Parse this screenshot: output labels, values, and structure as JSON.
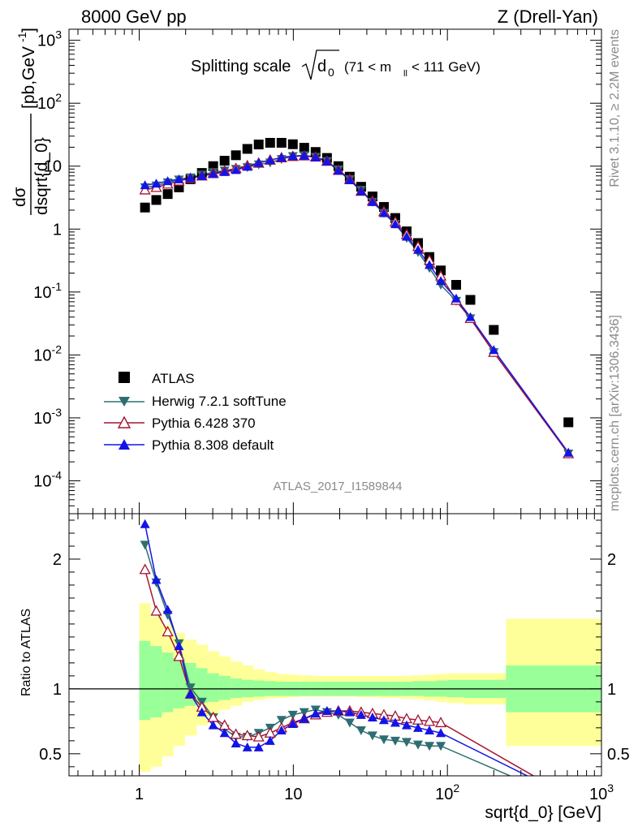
{
  "header": {
    "left": "8000 GeV pp",
    "right": "Z (Drell-Yan)"
  },
  "side_labels": {
    "rivet": "Rivet 3.1.10, ≥ 2.2M events",
    "mcplots": "mcplots.cern.ch [arXiv:1306.3436]"
  },
  "analysis_id": "ATLAS_2017_I1589844",
  "title": {
    "prefix": "Splitting scale",
    "sqrt_arg": "d",
    "sqrt_sub": "0",
    "range_pre": "(71 < m",
    "range_sub": "ll",
    "range_post": " < 111 GeV)"
  },
  "y_label_main": {
    "num": "dσ",
    "den": "dsqrt{d_0}",
    "units": "[pb,GeV",
    "units_sup": "-1",
    "units_end": "]"
  },
  "y_label_ratio": "Ratio to ATLAS",
  "x_label": "sqrt{d_0} [GeV]",
  "colors": {
    "atlas": "#000000",
    "herwig": "#2e6e72",
    "pythia6": "#a41530",
    "pythia8": "#1414e6",
    "band_inner": "#99ff99",
    "band_outer": "#ffff99"
  },
  "chart_data": [
    {
      "type": "scatter",
      "panel": "main",
      "xscale": "log",
      "yscale": "log",
      "xlim": [
        0.35,
        1000
      ],
      "ylim": [
        3e-05,
        1500
      ],
      "x_ticks": [
        1,
        10,
        100,
        1000
      ],
      "x_tick_labels": [
        "1",
        "10",
        "10²",
        "10³"
      ],
      "y_ticks": [
        {
          "v": 0.0001,
          "b": "10",
          "e": "-4"
        },
        {
          "v": 0.001,
          "b": "10",
          "e": "-3"
        },
        {
          "v": 0.01,
          "b": "10",
          "e": "-2"
        },
        {
          "v": 0.1,
          "b": "10",
          "e": "-1"
        },
        {
          "v": 1,
          "b": "1",
          "e": ""
        },
        {
          "v": 10,
          "b": "10",
          "e": ""
        },
        {
          "v": 100,
          "b": "10",
          "e": "2"
        },
        {
          "v": 1000,
          "b": "10",
          "e": "3"
        }
      ],
      "legend_position": "bottom-left",
      "x": [
        1.09,
        1.29,
        1.53,
        1.81,
        2.15,
        2.55,
        3.02,
        3.58,
        4.24,
        5.03,
        5.96,
        7.07,
        8.38,
        9.93,
        11.77,
        13.95,
        16.54,
        19.61,
        23.24,
        27.55,
        32.66,
        38.72,
        45.89,
        54.4,
        64.49,
        76.44,
        90.62,
        114.0,
        141.0,
        200.0,
        610.0
      ],
      "series": [
        {
          "name": "ATLAS",
          "marker": "square",
          "values": [
            2.2,
            2.9,
            3.6,
            4.6,
            6.2,
            7.8,
            10.0,
            12.2,
            14.9,
            18.8,
            22.1,
            23.5,
            23.5,
            22.3,
            19.6,
            16.8,
            13.5,
            10.0,
            6.8,
            4.7,
            3.3,
            2.25,
            1.5,
            0.92,
            0.6,
            0.36,
            0.22,
            0.13,
            0.075,
            0.025,
            0.00085
          ]
        },
        {
          "name": "Herwig 7.2.1 softTune",
          "marker": "triangle-down",
          "values": [
            4.6,
            4.9,
            5.5,
            6.1,
            6.6,
            7.3,
            8.0,
            8.5,
            9.0,
            9.6,
            10.6,
            11.4,
            12.9,
            14.4,
            14.8,
            14.0,
            12.0,
            8.8,
            6.2,
            4.2,
            2.7,
            1.8,
            1.2,
            0.72,
            0.43,
            0.24,
            0.13,
            0.072,
            0.038,
            0.011,
            0.00027
          ]
        },
        {
          "name": "Pythia 6.428 370",
          "marker": "triangle-up-open",
          "values": [
            4.2,
            4.6,
            5.2,
            5.8,
            6.4,
            7.0,
            7.7,
            8.4,
            9.2,
            10.2,
            11.2,
            12.5,
            13.6,
            14.3,
            14.6,
            14.0,
            12.0,
            8.6,
            6.2,
            4.0,
            2.8,
            1.9,
            1.3,
            0.82,
            0.53,
            0.32,
            0.18,
            0.074,
            0.038,
            0.011,
            0.00027
          ]
        },
        {
          "name": "Pythia 8.308 default",
          "marker": "triangle-up",
          "values": [
            5.0,
            5.3,
            5.8,
            6.2,
            6.5,
            7.0,
            7.5,
            8.1,
            8.7,
            9.8,
            11.3,
            12.5,
            13.7,
            14.5,
            14.7,
            13.8,
            11.9,
            8.5,
            6.0,
            4.0,
            2.7,
            1.8,
            1.2,
            0.76,
            0.47,
            0.27,
            0.15,
            0.079,
            0.04,
            0.012,
            0.00028
          ]
        }
      ]
    },
    {
      "type": "line",
      "panel": "ratio",
      "xscale": "log",
      "yscale": "linear",
      "xlim": [
        0.35,
        1000
      ],
      "ylim": [
        0.33,
        2.35
      ],
      "y_ticks": [
        0.5,
        1,
        2
      ],
      "y_tick_labels": [
        "0.5",
        "1",
        "2"
      ],
      "reference_line": 1,
      "bands": {
        "edges": [
          1.0,
          1.18,
          1.4,
          1.66,
          1.97,
          2.34,
          2.77,
          3.29,
          3.9,
          4.63,
          5.49,
          6.51,
          7.72,
          9.16,
          10.86,
          12.88,
          15.28,
          18.12,
          21.49,
          25.49,
          30.23,
          35.86,
          42.53,
          50.44,
          59.83,
          70.96,
          84.17,
          99.83,
          128.0,
          240.0,
          1000.0
        ],
        "inner_lo": [
          0.76,
          0.78,
          0.82,
          0.85,
          0.87,
          0.89,
          0.9,
          0.915,
          0.93,
          0.935,
          0.94,
          0.945,
          0.945,
          0.945,
          0.945,
          0.945,
          0.945,
          0.945,
          0.945,
          0.945,
          0.945,
          0.945,
          0.945,
          0.945,
          0.945,
          0.94,
          0.94,
          0.935,
          0.93,
          0.82
        ],
        "inner_hi": [
          1.37,
          1.33,
          1.28,
          1.24,
          1.2,
          1.16,
          1.12,
          1.1,
          1.08,
          1.07,
          1.065,
          1.06,
          1.055,
          1.055,
          1.055,
          1.055,
          1.055,
          1.055,
          1.055,
          1.055,
          1.055,
          1.055,
          1.055,
          1.055,
          1.06,
          1.06,
          1.065,
          1.07,
          1.07,
          1.18
        ],
        "outer_lo": [
          0.36,
          0.4,
          0.48,
          0.56,
          0.64,
          0.72,
          0.79,
          0.84,
          0.87,
          0.9,
          0.915,
          0.925,
          0.93,
          0.935,
          0.94,
          0.94,
          0.94,
          0.94,
          0.94,
          0.935,
          0.935,
          0.93,
          0.93,
          0.925,
          0.92,
          0.91,
          0.9,
          0.89,
          0.88,
          0.56
        ],
        "outer_hi": [
          1.66,
          1.56,
          1.49,
          1.43,
          1.38,
          1.34,
          1.29,
          1.25,
          1.21,
          1.18,
          1.15,
          1.13,
          1.115,
          1.11,
          1.105,
          1.1,
          1.1,
          1.1,
          1.1,
          1.1,
          1.1,
          1.1,
          1.1,
          1.1,
          1.105,
          1.11,
          1.115,
          1.12,
          1.12,
          1.54
        ]
      },
      "x": [
        1.09,
        1.29,
        1.53,
        1.81,
        2.15,
        2.55,
        3.02,
        3.58,
        4.24,
        5.03,
        5.96,
        7.07,
        8.38,
        9.93,
        11.77,
        13.95,
        16.54,
        19.61,
        23.24,
        27.55,
        32.66,
        38.72,
        45.89,
        54.4,
        64.49,
        76.44,
        90.62,
        400.0
      ],
      "series": [
        {
          "name": "Herwig 7.2.1 softTune",
          "values": [
            2.11,
            1.82,
            1.57,
            1.35,
            1.01,
            0.9,
            0.78,
            0.69,
            0.63,
            0.63,
            0.66,
            0.7,
            0.76,
            0.8,
            0.82,
            0.84,
            0.82,
            0.8,
            0.74,
            0.68,
            0.64,
            0.61,
            0.6,
            0.59,
            0.57,
            0.56,
            0.56,
            0.23
          ]
        },
        {
          "name": "Pythia 6.428 370",
          "values": [
            1.92,
            1.6,
            1.44,
            1.25,
            0.96,
            0.86,
            0.78,
            0.72,
            0.65,
            0.64,
            0.63,
            0.66,
            0.7,
            0.74,
            0.77,
            0.8,
            0.82,
            0.83,
            0.83,
            0.82,
            0.81,
            0.8,
            0.79,
            0.77,
            0.76,
            0.75,
            0.74,
            0.3
          ]
        },
        {
          "name": "Pythia 8.308 default",
          "values": [
            2.27,
            1.84,
            1.61,
            1.33,
            0.96,
            0.82,
            0.72,
            0.66,
            0.58,
            0.55,
            0.55,
            0.6,
            0.68,
            0.73,
            0.77,
            0.81,
            0.83,
            0.83,
            0.82,
            0.8,
            0.78,
            0.76,
            0.74,
            0.72,
            0.7,
            0.68,
            0.66,
            0.28
          ]
        }
      ]
    }
  ]
}
